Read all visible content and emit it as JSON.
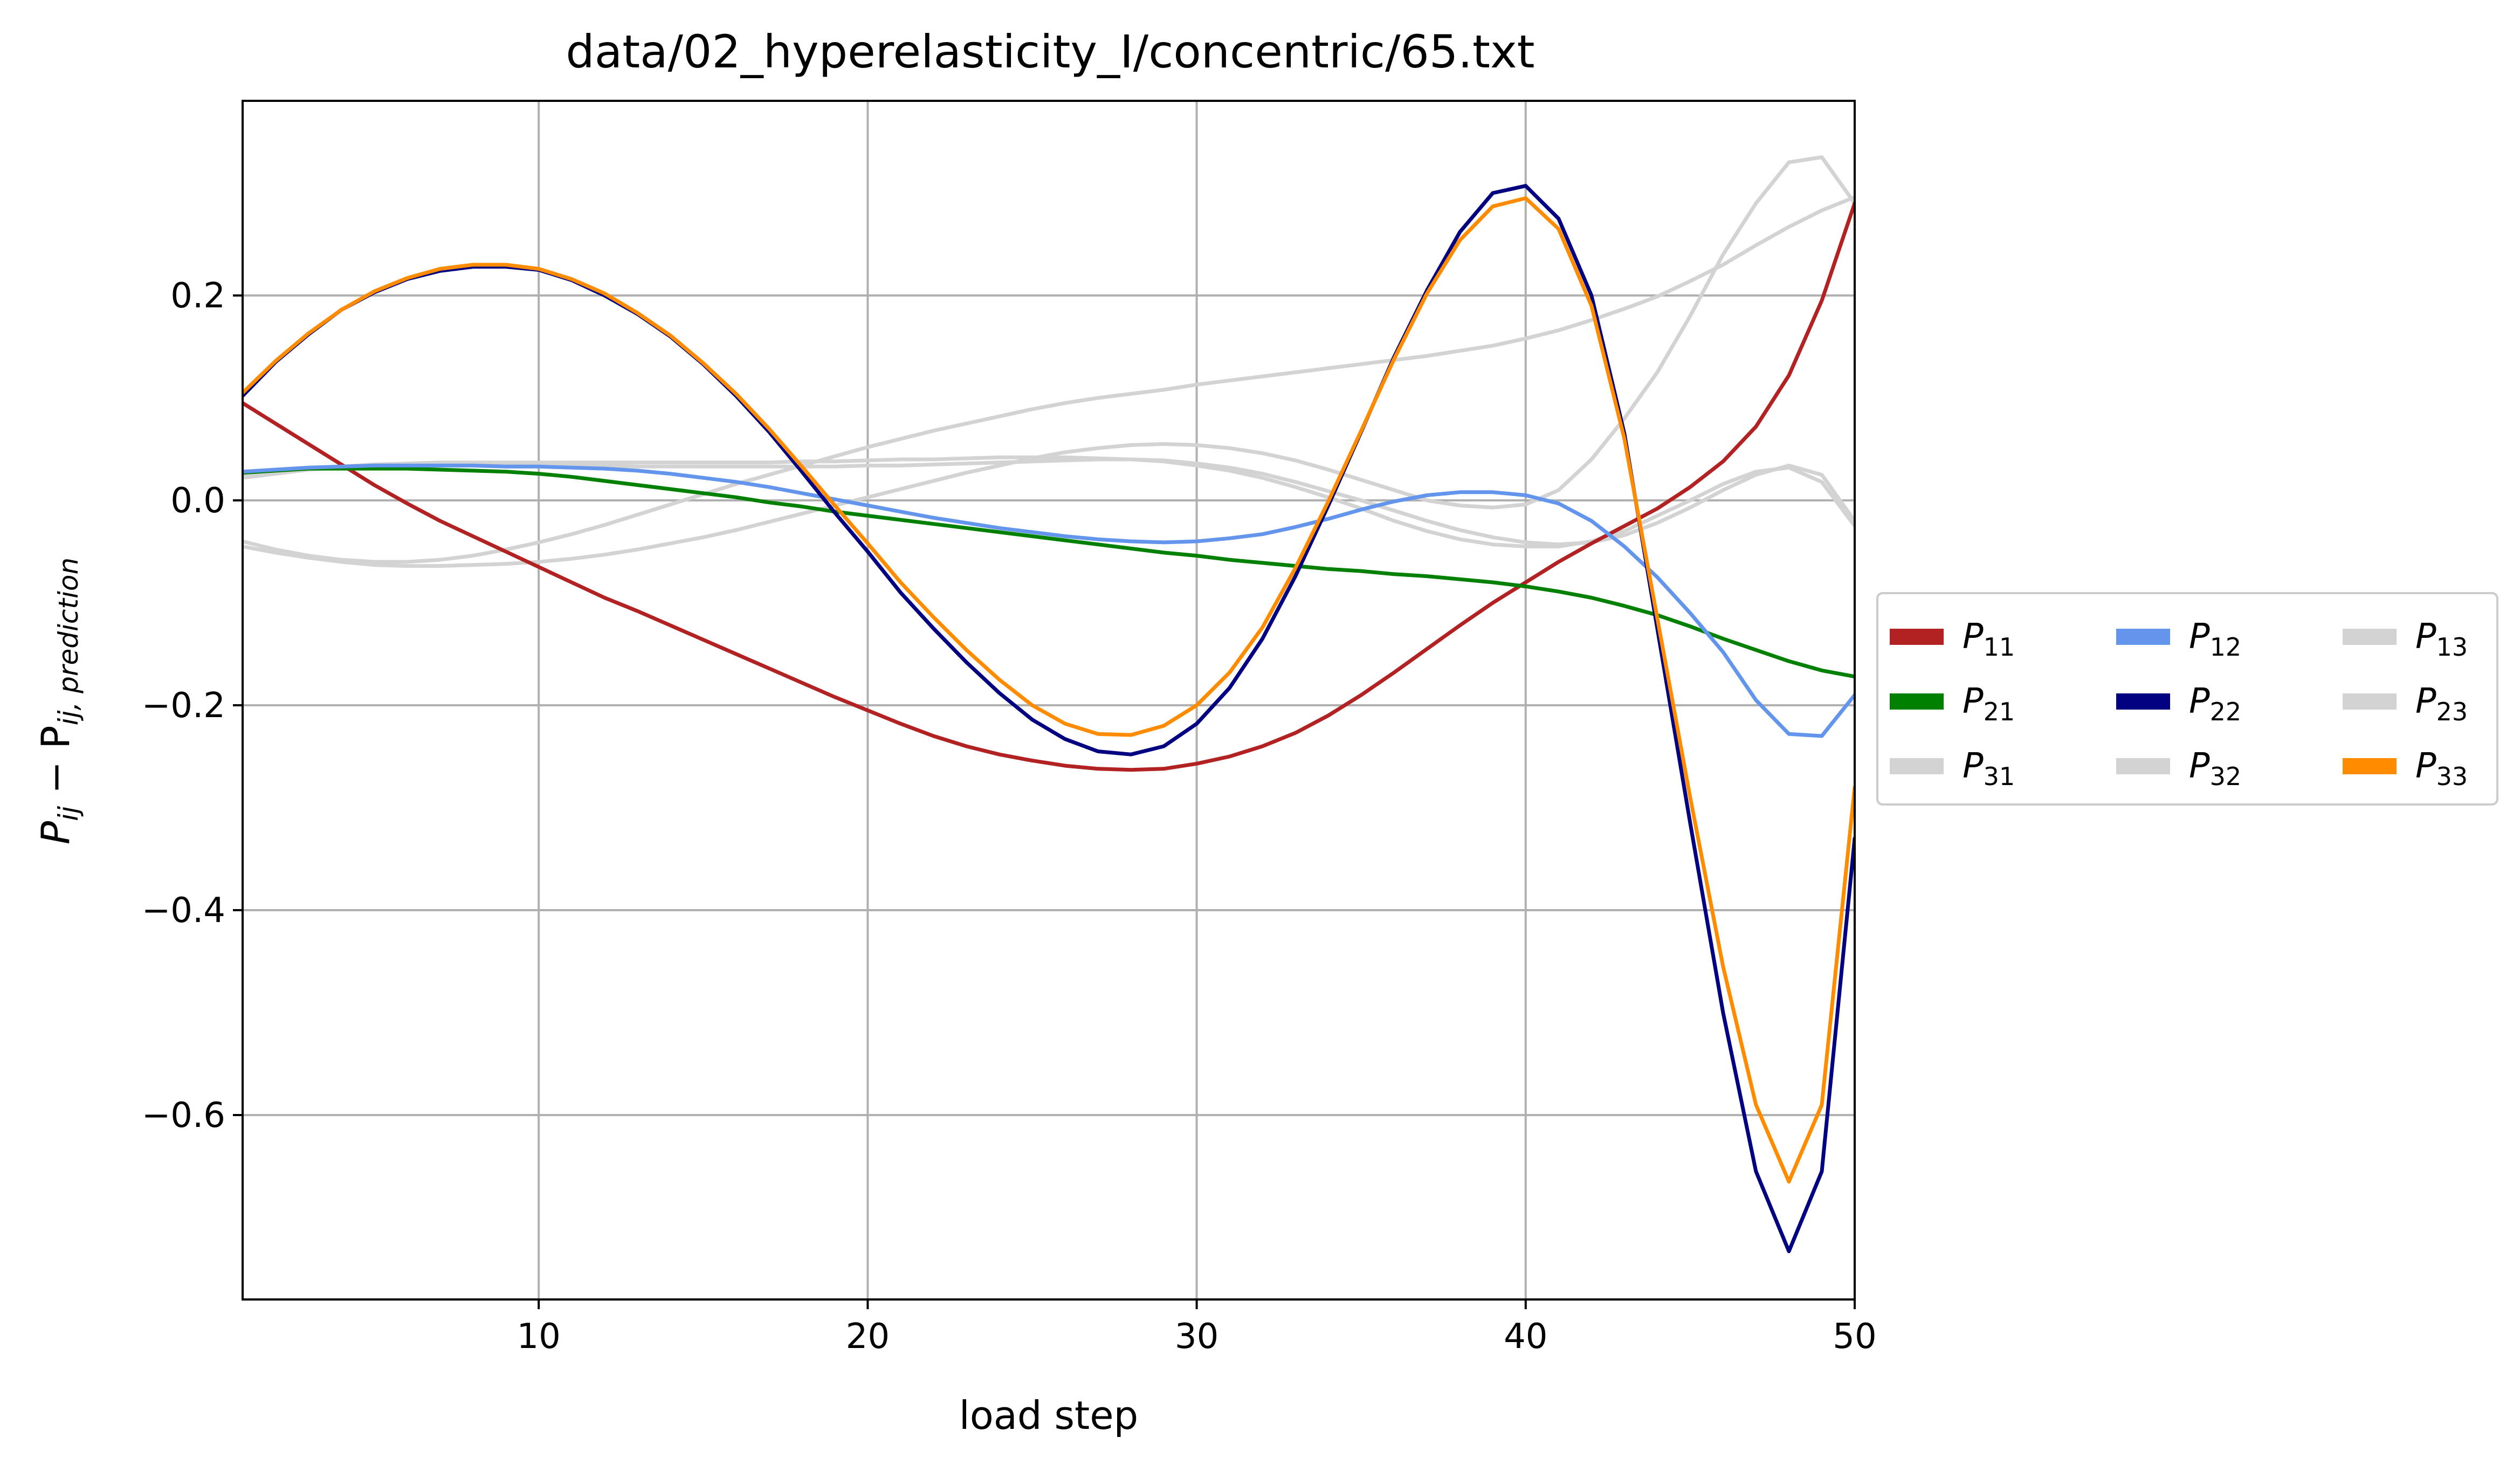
{
  "chart_data": {
    "type": "line",
    "title": "data/02_hyperelasticity_I/concentric/65.txt",
    "xlabel": "load step",
    "ylabel": "P_ij − P_ij,prediction",
    "ylabel_main": "P",
    "ylabel_sub1": "ij",
    "ylabel_minus": " − P",
    "ylabel_sub2": "ij, prediction",
    "xlim": [
      1,
      50
    ],
    "ylim": [
      -0.78,
      0.39
    ],
    "xticks": [
      10,
      20,
      30,
      40,
      50
    ],
    "xtick_labels": [
      "10",
      "20",
      "30",
      "40",
      "50"
    ],
    "yticks": [
      -0.6,
      -0.4,
      -0.2,
      0.0,
      0.2
    ],
    "ytick_labels": [
      "−0.6",
      "−0.4",
      "−0.2",
      "0.0",
      "0.2"
    ],
    "grid": true,
    "legend_placement": "center-right-outside",
    "legend_columns": 3,
    "x": [
      1,
      2,
      3,
      4,
      5,
      6,
      7,
      8,
      9,
      10,
      11,
      12,
      13,
      14,
      15,
      16,
      17,
      18,
      19,
      20,
      21,
      22,
      23,
      24,
      25,
      26,
      27,
      28,
      29,
      30,
      31,
      32,
      33,
      34,
      35,
      36,
      37,
      38,
      39,
      40,
      41,
      42,
      43,
      44,
      45,
      46,
      47,
      48,
      49,
      50
    ],
    "series": [
      {
        "name": "P11",
        "label_main": "P",
        "label_sub": "11",
        "color": "#b22222",
        "values": [
          0.095,
          0.075,
          0.055,
          0.035,
          0.015,
          -0.003,
          -0.02,
          -0.035,
          -0.05,
          -0.065,
          -0.08,
          -0.095,
          -0.108,
          -0.122,
          -0.136,
          -0.15,
          -0.164,
          -0.178,
          -0.192,
          -0.205,
          -0.218,
          -0.23,
          -0.24,
          -0.248,
          -0.254,
          -0.259,
          -0.262,
          -0.263,
          -0.262,
          -0.257,
          -0.25,
          -0.24,
          -0.227,
          -0.21,
          -0.19,
          -0.168,
          -0.145,
          -0.122,
          -0.1,
          -0.08,
          -0.06,
          -0.042,
          -0.025,
          -0.008,
          0.013,
          0.038,
          0.072,
          0.122,
          0.195,
          0.29
        ]
      },
      {
        "name": "P21",
        "label_main": "P",
        "label_sub": "21",
        "color": "#008000",
        "values": [
          0.027,
          0.029,
          0.031,
          0.031,
          0.031,
          0.031,
          0.03,
          0.029,
          0.028,
          0.026,
          0.023,
          0.019,
          0.015,
          0.011,
          0.007,
          0.003,
          -0.002,
          -0.006,
          -0.011,
          -0.015,
          -0.019,
          -0.023,
          -0.027,
          -0.031,
          -0.035,
          -0.039,
          -0.043,
          -0.047,
          -0.051,
          -0.054,
          -0.058,
          -0.061,
          -0.064,
          -0.067,
          -0.069,
          -0.072,
          -0.074,
          -0.077,
          -0.08,
          -0.084,
          -0.089,
          -0.095,
          -0.103,
          -0.112,
          -0.123,
          -0.135,
          -0.146,
          -0.157,
          -0.166,
          -0.172
        ]
      },
      {
        "name": "P31",
        "label_main": "P",
        "label_sub": "31",
        "color": "#d3d3d3",
        "values": [
          -0.04,
          -0.048,
          -0.054,
          -0.058,
          -0.06,
          -0.06,
          -0.058,
          -0.054,
          -0.048,
          -0.041,
          -0.033,
          -0.024,
          -0.014,
          -0.004,
          0.006,
          0.016,
          0.025,
          0.034,
          0.043,
          0.052,
          0.06,
          0.068,
          0.075,
          0.082,
          0.089,
          0.095,
          0.1,
          0.104,
          0.108,
          0.113,
          0.117,
          0.121,
          0.125,
          0.129,
          0.133,
          0.137,
          0.141,
          0.146,
          0.151,
          0.158,
          0.166,
          0.176,
          0.187,
          0.199,
          0.214,
          0.23,
          0.249,
          0.267,
          0.283,
          0.296
        ]
      },
      {
        "name": "P12",
        "label_main": "P",
        "label_sub": "12",
        "color": "#6495ed",
        "values": [
          0.028,
          0.03,
          0.032,
          0.033,
          0.034,
          0.034,
          0.034,
          0.034,
          0.033,
          0.033,
          0.032,
          0.031,
          0.029,
          0.026,
          0.022,
          0.018,
          0.013,
          0.007,
          0.001,
          -0.005,
          -0.011,
          -0.017,
          -0.022,
          -0.027,
          -0.031,
          -0.035,
          -0.038,
          -0.04,
          -0.041,
          -0.04,
          -0.037,
          -0.033,
          -0.026,
          -0.018,
          -0.009,
          -0.001,
          0.005,
          0.008,
          0.008,
          0.005,
          -0.003,
          -0.02,
          -0.045,
          -0.075,
          -0.11,
          -0.148,
          -0.195,
          -0.228,
          -0.23,
          -0.19
        ]
      },
      {
        "name": "P22",
        "label_main": "P",
        "label_sub": "22",
        "color": "#000080",
        "values": [
          0.102,
          0.135,
          0.162,
          0.186,
          0.203,
          0.216,
          0.224,
          0.228,
          0.228,
          0.225,
          0.215,
          0.2,
          0.182,
          0.16,
          0.133,
          0.102,
          0.067,
          0.028,
          -0.012,
          -0.05,
          -0.09,
          -0.125,
          -0.158,
          -0.188,
          -0.214,
          -0.233,
          -0.245,
          -0.248,
          -0.24,
          -0.218,
          -0.183,
          -0.135,
          -0.074,
          -0.005,
          0.067,
          0.14,
          0.205,
          0.262,
          0.3,
          0.307,
          0.275,
          0.2,
          0.065,
          -0.125,
          -0.315,
          -0.5,
          -0.655,
          -0.733,
          -0.655,
          -0.33
        ]
      },
      {
        "name": "P32",
        "label_main": "P",
        "label_sub": "32",
        "color": "#d3d3d3",
        "values": [
          0.022,
          0.026,
          0.03,
          0.033,
          0.035,
          0.036,
          0.037,
          0.037,
          0.037,
          0.037,
          0.037,
          0.037,
          0.037,
          0.037,
          0.037,
          0.037,
          0.037,
          0.038,
          0.038,
          0.039,
          0.04,
          0.04,
          0.041,
          0.042,
          0.042,
          0.042,
          0.041,
          0.04,
          0.038,
          0.034,
          0.029,
          0.022,
          0.013,
          0.003,
          -0.008,
          -0.02,
          -0.03,
          -0.038,
          -0.043,
          -0.045,
          -0.045,
          -0.04,
          -0.03,
          -0.015,
          0.0,
          0.016,
          0.028,
          0.032,
          0.018,
          -0.025
        ]
      },
      {
        "name": "P13",
        "label_main": "P",
        "label_sub": "13",
        "color": "#d3d3d3",
        "values": [
          -0.045,
          -0.051,
          -0.056,
          -0.06,
          -0.063,
          -0.064,
          -0.064,
          -0.063,
          -0.062,
          -0.06,
          -0.057,
          -0.053,
          -0.048,
          -0.042,
          -0.036,
          -0.029,
          -0.021,
          -0.013,
          -0.005,
          0.003,
          0.011,
          0.019,
          0.027,
          0.034,
          0.041,
          0.047,
          0.051,
          0.054,
          0.055,
          0.054,
          0.051,
          0.046,
          0.039,
          0.03,
          0.02,
          0.01,
          0.0,
          -0.005,
          -0.007,
          -0.004,
          0.01,
          0.04,
          0.08,
          0.125,
          0.18,
          0.24,
          0.29,
          0.33,
          0.335,
          0.29
        ]
      },
      {
        "name": "P23",
        "label_main": "P",
        "label_sub": "23",
        "color": "#d3d3d3",
        "values": [
          0.024,
          0.027,
          0.03,
          0.032,
          0.034,
          0.035,
          0.035,
          0.035,
          0.035,
          0.035,
          0.034,
          0.034,
          0.033,
          0.033,
          0.033,
          0.033,
          0.033,
          0.033,
          0.033,
          0.034,
          0.034,
          0.035,
          0.036,
          0.037,
          0.038,
          0.039,
          0.04,
          0.04,
          0.039,
          0.036,
          0.032,
          0.026,
          0.018,
          0.009,
          0.0,
          -0.01,
          -0.02,
          -0.029,
          -0.036,
          -0.041,
          -0.043,
          -0.041,
          -0.034,
          -0.022,
          -0.007,
          0.01,
          0.025,
          0.034,
          0.025,
          -0.02
        ]
      },
      {
        "name": "P33",
        "label_main": "P",
        "label_sub": "33",
        "color": "#ff8c00",
        "values": [
          0.105,
          0.136,
          0.163,
          0.186,
          0.204,
          0.217,
          0.226,
          0.23,
          0.23,
          0.226,
          0.216,
          0.202,
          0.183,
          0.161,
          0.134,
          0.104,
          0.07,
          0.033,
          -0.005,
          -0.042,
          -0.08,
          -0.114,
          -0.146,
          -0.175,
          -0.2,
          -0.218,
          -0.228,
          -0.229,
          -0.22,
          -0.2,
          -0.168,
          -0.124,
          -0.066,
          -0.001,
          0.068,
          0.138,
          0.202,
          0.254,
          0.287,
          0.295,
          0.265,
          0.19,
          0.06,
          -0.115,
          -0.29,
          -0.455,
          -0.59,
          -0.665,
          -0.59,
          -0.28
        ]
      }
    ],
    "legend_order": [
      "P11",
      "P21",
      "P31",
      "P12",
      "P22",
      "P32",
      "P13",
      "P23",
      "P33"
    ]
  }
}
